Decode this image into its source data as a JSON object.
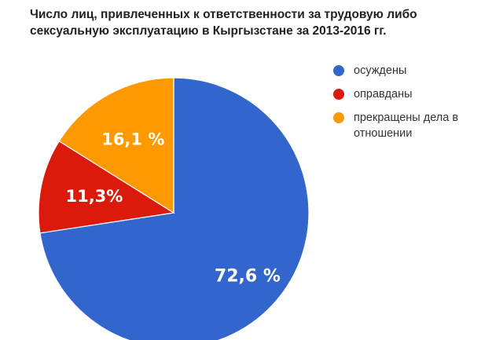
{
  "title_lines": [
    "Число лиц, привлеченных к ответственности за трудовую либо",
    "сексуальную эксплуатацию в Кыргызстане за 2013-2016 гг."
  ],
  "chart_data": {
    "type": "pie",
    "title": "Число лиц, привлеченных к ответственности за трудовую либо сексуальную эксплуатацию в Кыргызстане за 2013-2016 гг.",
    "legend_position": "right",
    "slices": [
      {
        "name": "осуждены",
        "value": 72.6,
        "label": "72,6 %",
        "color": "#3366CC"
      },
      {
        "name": "оправданы",
        "value": 11.3,
        "label": "11,3%",
        "color": "#DC1A0B"
      },
      {
        "name": "прекращены дела в отношении",
        "value": 16.1,
        "label": "16,1 %",
        "color": "#FF9900"
      }
    ]
  },
  "legend": [
    {
      "text": "осуждены",
      "color": "#3366CC"
    },
    {
      "text": "оправданы",
      "color": "#DC1A0B"
    },
    {
      "text": "прекращены дела в отношении",
      "color": "#FF9900"
    }
  ]
}
